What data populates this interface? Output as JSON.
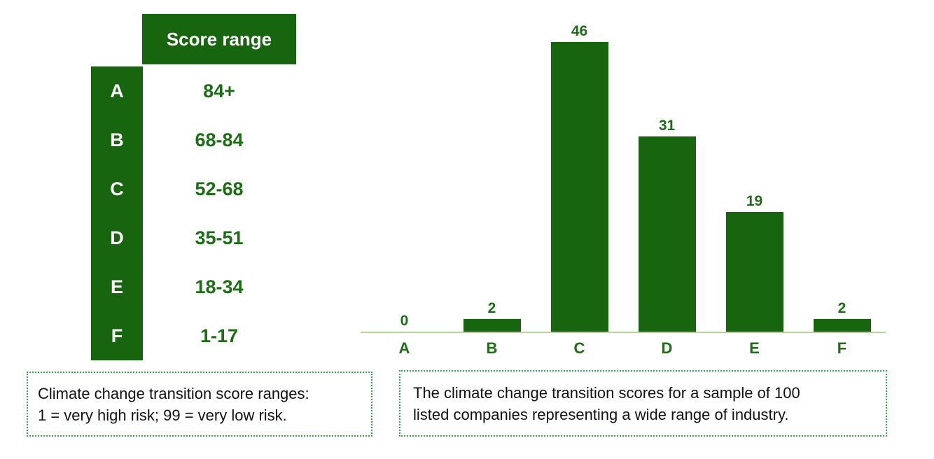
{
  "palette": {
    "dark_green": "#17650f",
    "text_green": "#1d6d16",
    "axis_green": "#b4d29c",
    "caption_border_green": "#35aa47",
    "caption_text": "#111111",
    "header_text": "#ffffff"
  },
  "score_table": {
    "header": "Score range",
    "rows": [
      {
        "grade": "A",
        "range": "84+"
      },
      {
        "grade": "B",
        "range": "68-84"
      },
      {
        "grade": "C",
        "range": "52-68"
      },
      {
        "grade": "D",
        "range": "35-51"
      },
      {
        "grade": "E",
        "range": "18-34"
      },
      {
        "grade": "F",
        "range": "1-17"
      }
    ]
  },
  "chart_data": {
    "type": "bar",
    "categories": [
      "A",
      "B",
      "C",
      "D",
      "E",
      "F"
    ],
    "values": [
      0,
      2,
      46,
      31,
      19,
      2
    ],
    "ylim": [
      0,
      50
    ],
    "grid": false,
    "legend": false,
    "data_labels": true,
    "bar_color": "#17650f",
    "axis_line_color": "#b4d29c"
  },
  "captions": {
    "left": {
      "line1": "Climate change transition score ranges:",
      "line2": "1 = very high risk; 99 = very low risk."
    },
    "right": {
      "line1": "The climate change transition scores for a sample of 100",
      "line2": "listed companies representing a wide range of industry."
    }
  }
}
